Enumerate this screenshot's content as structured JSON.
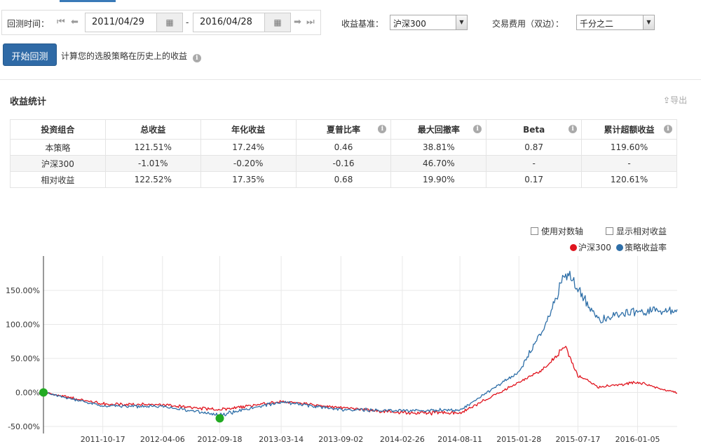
{
  "controls": {
    "backtest_time_label": "回测时间：",
    "start_date": "2011/04/29",
    "date_separator": "-",
    "end_date": "2016/04/28",
    "benchmark_label": "收益基准：",
    "benchmark_value": "沪深300",
    "fee_label": "交易费用（双边）：",
    "fee_value": "千分之二",
    "start_button": "开始回测",
    "start_hint": "计算您的选股策略在历史上的收益"
  },
  "stats": {
    "title": "收益统计",
    "export_label": "导出",
    "headers": [
      "投资组合",
      "总收益",
      "年化收益",
      "夏普比率",
      "最大回撤率",
      "Beta",
      "累计超额收益"
    ],
    "rows": [
      [
        "本策略",
        "121.51%",
        "17.24%",
        "0.46",
        "38.81%",
        "0.87",
        "119.60%"
      ],
      [
        "沪深300",
        "-1.01%",
        "-0.20%",
        "-0.16",
        "46.70%",
        "-",
        "-"
      ],
      [
        "相对收益",
        "122.52%",
        "17.35%",
        "0.68",
        "19.90%",
        "0.17",
        "120.61%"
      ]
    ]
  },
  "chart_options": {
    "log_axis_label": "使用对数轴",
    "relative_return_label": "显示相对收益"
  },
  "colors": {
    "primary": "#2f6aa6",
    "benchmark_line": "#e0141e",
    "strategy_line": "#2e6fa8",
    "marker": "#22aa22",
    "positive_green": "#2a8a2a"
  },
  "chart_data": {
    "type": "line",
    "title": "",
    "ylim": [
      -50,
      200
    ],
    "y_ticks": [
      "150.00%",
      "100.00%",
      "50.00%",
      "0.00%",
      "-50.00%"
    ],
    "y_tick_values": [
      150,
      100,
      50,
      0,
      -50
    ],
    "x_ticks": [
      "2011-10-17",
      "2012-04-06",
      "2012-09-18",
      "2013-03-14",
      "2013-09-02",
      "2014-02-26",
      "2014-08-11",
      "2015-01-28",
      "2015-07-17",
      "2016-01-05"
    ],
    "x": [
      "2011-04-29",
      "2011-10-17",
      "2012-04-06",
      "2012-09-18",
      "2013-03-14",
      "2013-09-02",
      "2014-02-26",
      "2014-08-11",
      "2015-01-28",
      "2015-04-10",
      "2015-06-12",
      "2015-07-17",
      "2015-09-15",
      "2016-01-05",
      "2016-04-28"
    ],
    "series": [
      {
        "name": "沪深300",
        "color": "#e0141e",
        "values": [
          0,
          -17,
          -18,
          -26,
          -13,
          -22,
          -30,
          -30,
          15,
          35,
          68,
          25,
          8,
          15,
          -1
        ]
      },
      {
        "name": "策略收益率",
        "color": "#2e6fa8",
        "values": [
          0,
          -20,
          -21,
          -33,
          -14,
          -25,
          -27,
          -26,
          30,
          95,
          178,
          150,
          105,
          120,
          122
        ]
      }
    ],
    "markers": [
      {
        "x": "2011-04-29",
        "y": 0
      },
      {
        "x": "2012-09-18",
        "y": -38
      }
    ],
    "legend": "top-right",
    "grid": true
  }
}
